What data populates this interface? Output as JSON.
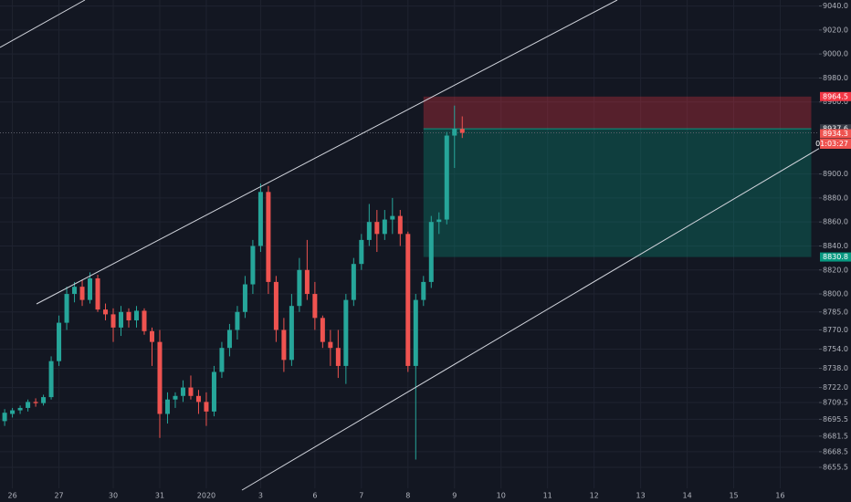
{
  "chart_data": {
    "type": "candlestick",
    "x": [
      0,
      1,
      2,
      3,
      4,
      5,
      6,
      7,
      8,
      9,
      10,
      11,
      12,
      13,
      14,
      15,
      16,
      17,
      18,
      19,
      20,
      21,
      22,
      23,
      24,
      25,
      26,
      27,
      28,
      29,
      30,
      31,
      32,
      33,
      34,
      35,
      36,
      37,
      38,
      39,
      40,
      41,
      42,
      43,
      44,
      45,
      46,
      47,
      48,
      49,
      50,
      51,
      52,
      53,
      54,
      55,
      56,
      57,
      58,
      59
    ],
    "open": [
      8694,
      8700,
      8703,
      8705,
      8710,
      8709,
      8714,
      8744,
      8776,
      8800,
      8806,
      8795,
      8813,
      8787,
      8783,
      8772,
      8785,
      8778,
      8786,
      8769,
      8760,
      8700,
      8712,
      8715,
      8722,
      8715,
      8710,
      8702,
      8735,
      8755,
      8770,
      8785,
      8808,
      8840,
      8885,
      8810,
      8770,
      8745,
      8790,
      8820,
      8800,
      8780,
      8760,
      8755,
      8740,
      8795,
      8825,
      8845,
      8860,
      8850,
      8862,
      8865,
      8850,
      8740,
      8795,
      8810,
      8860,
      8862,
      8932,
      8937.6
    ],
    "high": [
      8704,
      8705,
      8707,
      8712,
      8713,
      8716,
      8748,
      8782,
      8806,
      8810,
      8812,
      8818,
      8816,
      8792,
      8788,
      8790,
      8788,
      8790,
      8788,
      8772,
      8770,
      8718,
      8718,
      8728,
      8732,
      8720,
      8718,
      8740,
      8760,
      8775,
      8790,
      8815,
      8845,
      8892,
      8890,
      8815,
      8780,
      8800,
      8830,
      8845,
      8810,
      8782,
      8770,
      8770,
      8800,
      8830,
      8850,
      8875,
      8870,
      8870,
      8880,
      8870,
      8852,
      8800,
      8815,
      8865,
      8868,
      8935,
      8957,
      8948
    ],
    "low": [
      8690,
      8697,
      8700,
      8702,
      8706,
      8707,
      8712,
      8740,
      8770,
      8793,
      8790,
      8792,
      8785,
      8778,
      8760,
      8765,
      8772,
      8772,
      8766,
      8740,
      8680,
      8692,
      8705,
      8710,
      8712,
      8700,
      8690,
      8698,
      8730,
      8748,
      8762,
      8780,
      8800,
      8835,
      8800,
      8760,
      8735,
      8740,
      8785,
      8795,
      8770,
      8755,
      8740,
      8730,
      8725,
      8790,
      8820,
      8840,
      8835,
      8845,
      8850,
      8840,
      8735,
      8662,
      8790,
      8805,
      8850,
      8858,
      8905,
      8930
    ],
    "close": [
      8701,
      8703,
      8705,
      8710,
      8709,
      8714,
      8744,
      8776,
      8800,
      8806,
      8795,
      8813,
      8787,
      8783,
      8772,
      8785,
      8778,
      8786,
      8769,
      8760,
      8700,
      8712,
      8715,
      8722,
      8715,
      8710,
      8702,
      8735,
      8755,
      8770,
      8785,
      8808,
      8840,
      8885,
      8810,
      8770,
      8745,
      8790,
      8820,
      8800,
      8780,
      8760,
      8755,
      8740,
      8795,
      8825,
      8845,
      8860,
      8850,
      8862,
      8865,
      8850,
      8740,
      8795,
      8810,
      8860,
      8862,
      8932,
      8937.6,
      8934.3
    ],
    "up_color": "#26a69a",
    "down_color": "#ef5350",
    "grid": true,
    "xlim": [
      -0.6,
      105
    ],
    "ylim": [
      8638,
      9045
    ],
    "xticks": [
      {
        "value": 1,
        "label": "26"
      },
      {
        "value": 7,
        "label": "27"
      },
      {
        "value": 14,
        "label": "30"
      },
      {
        "value": 20,
        "label": "31"
      },
      {
        "value": 26,
        "label": "2020"
      },
      {
        "value": 33,
        "label": "3"
      },
      {
        "value": 40,
        "label": "6"
      },
      {
        "value": 46,
        "label": "7"
      },
      {
        "value": 52,
        "label": "8"
      },
      {
        "value": 58,
        "label": "9"
      },
      {
        "value": 64,
        "label": "10"
      },
      {
        "value": 70,
        "label": "11"
      },
      {
        "value": 76,
        "label": "12"
      },
      {
        "value": 82,
        "label": "13"
      },
      {
        "value": 88,
        "label": "14"
      },
      {
        "value": 94,
        "label": "15"
      },
      {
        "value": 100,
        "label": "16"
      }
    ],
    "yticks": [
      {
        "value": 9040,
        "label": "9040.0"
      },
      {
        "value": 9020,
        "label": "9020.0"
      },
      {
        "value": 9000,
        "label": "9000.0"
      },
      {
        "value": 8980,
        "label": "8980.0"
      },
      {
        "value": 8960,
        "label": "8960.0"
      },
      {
        "value": 8900,
        "label": "8900.0"
      },
      {
        "value": 8880,
        "label": "8880.0"
      },
      {
        "value": 8860,
        "label": "8860.0"
      },
      {
        "value": 8840,
        "label": "8840.0"
      },
      {
        "value": 8820,
        "label": "8820.0"
      },
      {
        "value": 8800,
        "label": "8800.0"
      },
      {
        "value": 8785,
        "label": "8785.0"
      },
      {
        "value": 8770,
        "label": "8770.0"
      },
      {
        "value": 8754,
        "label": "8754.0"
      },
      {
        "value": 8738,
        "label": "8738.0"
      },
      {
        "value": 8722,
        "label": "8722.0"
      },
      8709.5,
      8695.5,
      8681.5,
      8668.5,
      8655.5
    ],
    "stop": 8964.5,
    "entry": 8937.6,
    "last": 8934.3,
    "countdown": "01:03:27",
    "target": 8830.8,
    "zone_x": [
      54,
      104
    ]
  }
}
